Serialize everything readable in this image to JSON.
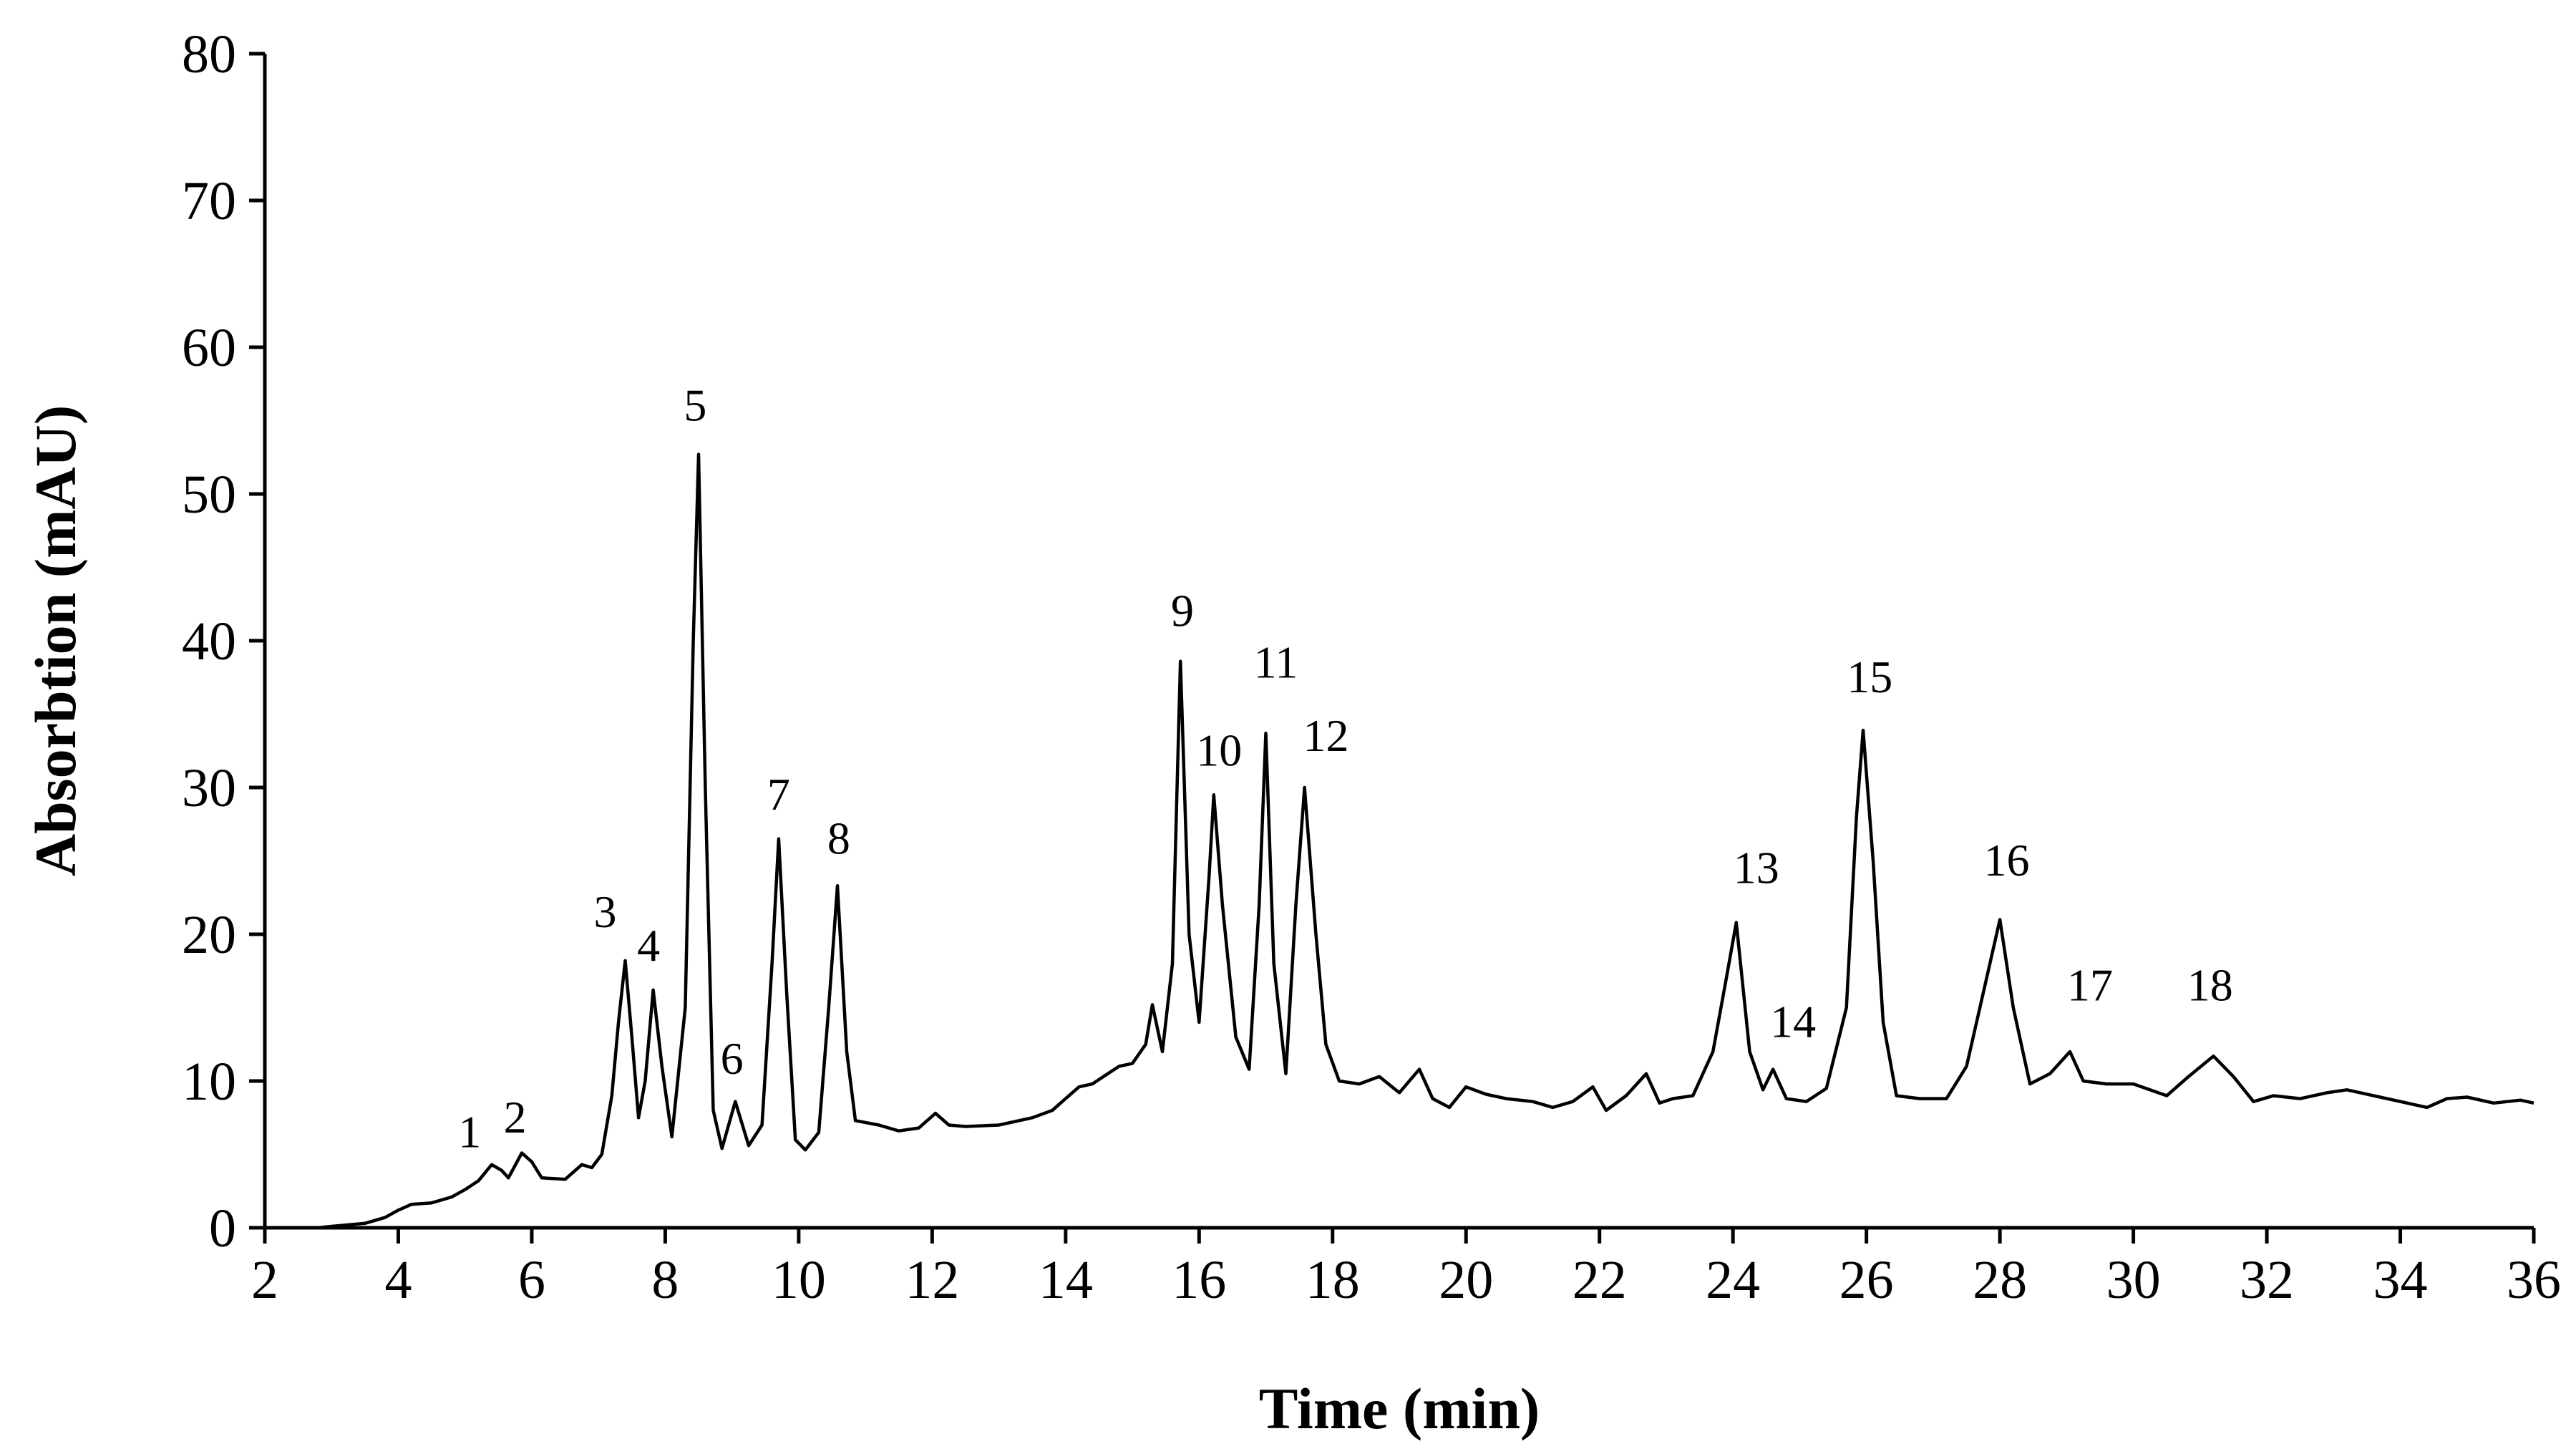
{
  "chart_data": {
    "type": "line",
    "title": "",
    "xlabel": "Time (min)",
    "ylabel": "Absorbtion (mAU)",
    "xlim": [
      2,
      36
    ],
    "ylim": [
      0,
      80
    ],
    "x_ticks": [
      2,
      4,
      6,
      8,
      10,
      12,
      14,
      16,
      18,
      20,
      22,
      24,
      26,
      28,
      30,
      32,
      34,
      36
    ],
    "y_ticks": [
      0,
      10,
      20,
      30,
      40,
      50,
      60,
      70,
      80
    ],
    "grid": false,
    "legend": "none",
    "series": [
      {
        "color": "#000000",
        "points": [
          [
            2.0,
            0
          ],
          [
            2.8,
            0
          ],
          [
            3.0,
            0.1
          ],
          [
            3.5,
            0.3
          ],
          [
            3.8,
            0.7
          ],
          [
            4.0,
            1.2
          ],
          [
            4.2,
            1.6
          ],
          [
            4.5,
            1.7
          ],
          [
            4.8,
            2.1
          ],
          [
            5.0,
            2.6
          ],
          [
            5.2,
            3.2
          ],
          [
            5.4,
            4.3
          ],
          [
            5.55,
            3.9
          ],
          [
            5.65,
            3.4
          ],
          [
            5.85,
            5.1
          ],
          [
            6.0,
            4.5
          ],
          [
            6.15,
            3.4
          ],
          [
            6.5,
            3.3
          ],
          [
            6.75,
            4.3
          ],
          [
            6.9,
            4.1
          ],
          [
            7.05,
            5.0
          ],
          [
            7.2,
            9.0
          ],
          [
            7.3,
            14.0
          ],
          [
            7.4,
            18.2
          ],
          [
            7.5,
            13.0
          ],
          [
            7.6,
            7.5
          ],
          [
            7.7,
            10.0
          ],
          [
            7.82,
            16.2
          ],
          [
            7.95,
            11.0
          ],
          [
            8.1,
            6.2
          ],
          [
            8.3,
            15.0
          ],
          [
            8.42,
            40.0
          ],
          [
            8.5,
            52.7
          ],
          [
            8.6,
            30.0
          ],
          [
            8.72,
            8.0
          ],
          [
            8.85,
            5.4
          ],
          [
            9.05,
            8.6
          ],
          [
            9.25,
            5.6
          ],
          [
            9.45,
            7.0
          ],
          [
            9.6,
            18.0
          ],
          [
            9.7,
            26.5
          ],
          [
            9.82,
            16.0
          ],
          [
            9.95,
            6.0
          ],
          [
            10.1,
            5.3
          ],
          [
            10.3,
            6.5
          ],
          [
            10.45,
            15.0
          ],
          [
            10.58,
            23.3
          ],
          [
            10.72,
            12.0
          ],
          [
            10.85,
            7.3
          ],
          [
            11.2,
            7.0
          ],
          [
            11.5,
            6.6
          ],
          [
            11.8,
            6.8
          ],
          [
            12.05,
            7.8
          ],
          [
            12.25,
            7.0
          ],
          [
            12.5,
            6.9
          ],
          [
            13.0,
            7.0
          ],
          [
            13.5,
            7.5
          ],
          [
            13.8,
            8.0
          ],
          [
            14.0,
            8.8
          ],
          [
            14.2,
            9.6
          ],
          [
            14.4,
            9.8
          ],
          [
            14.6,
            10.4
          ],
          [
            14.8,
            11.0
          ],
          [
            15.0,
            11.2
          ],
          [
            15.2,
            12.5
          ],
          [
            15.3,
            15.2
          ],
          [
            15.45,
            12.0
          ],
          [
            15.6,
            18.0
          ],
          [
            15.72,
            38.6
          ],
          [
            15.85,
            20.0
          ],
          [
            16.0,
            14.0
          ],
          [
            16.15,
            24.0
          ],
          [
            16.22,
            29.5
          ],
          [
            16.35,
            22.0
          ],
          [
            16.55,
            13.0
          ],
          [
            16.75,
            10.8
          ],
          [
            16.9,
            22.0
          ],
          [
            17.0,
            33.7
          ],
          [
            17.12,
            18.0
          ],
          [
            17.3,
            10.5
          ],
          [
            17.45,
            22.0
          ],
          [
            17.58,
            30.0
          ],
          [
            17.75,
            20.0
          ],
          [
            17.9,
            12.5
          ],
          [
            18.1,
            10.0
          ],
          [
            18.4,
            9.8
          ],
          [
            18.7,
            10.3
          ],
          [
            19.0,
            9.2
          ],
          [
            19.3,
            10.8
          ],
          [
            19.5,
            8.8
          ],
          [
            19.75,
            8.2
          ],
          [
            20.0,
            9.6
          ],
          [
            20.3,
            9.1
          ],
          [
            20.6,
            8.8
          ],
          [
            21.0,
            8.6
          ],
          [
            21.3,
            8.2
          ],
          [
            21.6,
            8.6
          ],
          [
            21.9,
            9.6
          ],
          [
            22.1,
            8.0
          ],
          [
            22.4,
            9.0
          ],
          [
            22.7,
            10.5
          ],
          [
            22.9,
            8.5
          ],
          [
            23.1,
            8.8
          ],
          [
            23.4,
            9.0
          ],
          [
            23.7,
            12.0
          ],
          [
            23.9,
            17.0
          ],
          [
            24.05,
            20.8
          ],
          [
            24.25,
            12.0
          ],
          [
            24.45,
            9.4
          ],
          [
            24.6,
            10.8
          ],
          [
            24.8,
            8.8
          ],
          [
            25.1,
            8.6
          ],
          [
            25.4,
            9.5
          ],
          [
            25.7,
            15.0
          ],
          [
            25.85,
            28.0
          ],
          [
            25.95,
            33.9
          ],
          [
            26.1,
            25.0
          ],
          [
            26.25,
            14.0
          ],
          [
            26.45,
            9.0
          ],
          [
            26.8,
            8.8
          ],
          [
            27.2,
            8.8
          ],
          [
            27.5,
            11.0
          ],
          [
            27.8,
            17.0
          ],
          [
            28.0,
            21.0
          ],
          [
            28.2,
            15.0
          ],
          [
            28.45,
            9.8
          ],
          [
            28.75,
            10.5
          ],
          [
            29.05,
            12.0
          ],
          [
            29.25,
            10.0
          ],
          [
            29.6,
            9.8
          ],
          [
            30.0,
            9.8
          ],
          [
            30.5,
            9.0
          ],
          [
            30.8,
            10.2
          ],
          [
            31.2,
            11.7
          ],
          [
            31.5,
            10.3
          ],
          [
            31.8,
            8.6
          ],
          [
            32.1,
            9.0
          ],
          [
            32.5,
            8.8
          ],
          [
            32.9,
            9.2
          ],
          [
            33.2,
            9.4
          ],
          [
            33.6,
            9.0
          ],
          [
            34.0,
            8.6
          ],
          [
            34.4,
            8.2
          ],
          [
            34.7,
            8.8
          ],
          [
            35.0,
            8.9
          ],
          [
            35.4,
            8.5
          ],
          [
            35.8,
            8.7
          ],
          [
            36.0,
            8.5
          ]
        ]
      }
    ],
    "annotations": [
      {
        "text": "1",
        "x": 5.07,
        "y": 5.5
      },
      {
        "text": "2",
        "x": 5.75,
        "y": 6.5
      },
      {
        "text": "3",
        "x": 7.1,
        "y": 20.5
      },
      {
        "text": "4",
        "x": 7.75,
        "y": 18.2
      },
      {
        "text": "5",
        "x": 8.45,
        "y": 55.0
      },
      {
        "text": "6",
        "x": 9.0,
        "y": 10.5
      },
      {
        "text": "7",
        "x": 9.7,
        "y": 28.5
      },
      {
        "text": "8",
        "x": 10.6,
        "y": 25.5
      },
      {
        "text": "9",
        "x": 15.75,
        "y": 41.0
      },
      {
        "text": "10",
        "x": 16.3,
        "y": 31.5
      },
      {
        "text": "11",
        "x": 17.15,
        "y": 37.5
      },
      {
        "text": "12",
        "x": 17.9,
        "y": 32.5
      },
      {
        "text": "13",
        "x": 24.35,
        "y": 23.5
      },
      {
        "text": "14",
        "x": 24.9,
        "y": 13.0
      },
      {
        "text": "15",
        "x": 26.05,
        "y": 36.5
      },
      {
        "text": "16",
        "x": 28.1,
        "y": 24.0
      },
      {
        "text": "17",
        "x": 29.35,
        "y": 15.5
      },
      {
        "text": "18",
        "x": 31.15,
        "y": 15.5
      }
    ]
  }
}
